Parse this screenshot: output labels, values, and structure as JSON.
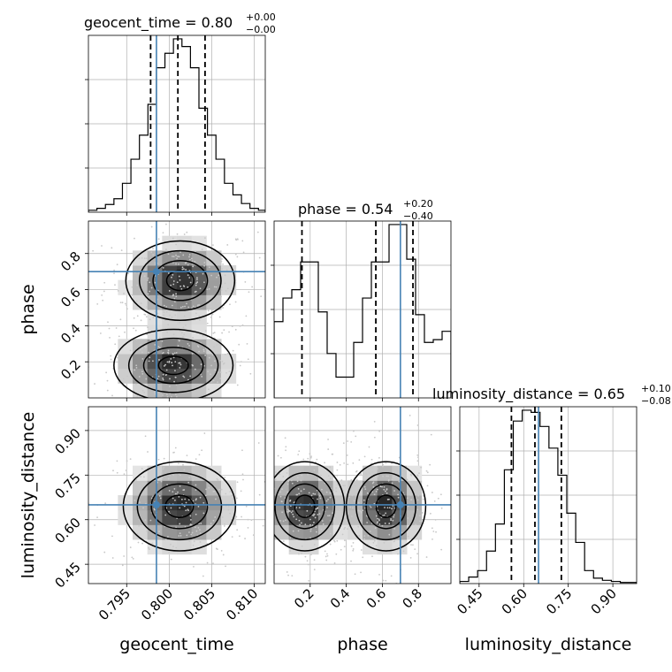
{
  "chart_data": {
    "type": "corner",
    "parameters": [
      "geocent_time",
      "phase",
      "luminosity_distance"
    ],
    "truths": {
      "geocent_time": 0.7985,
      "phase": 0.7,
      "luminosity_distance": 0.65
    },
    "titles": {
      "geocent_time": {
        "name": "geocent_time",
        "median": "0.80",
        "plus": "+0.00",
        "minus": "−0.00"
      },
      "phase": {
        "name": "phase",
        "median": "0.54",
        "plus": "+0.20",
        "minus": "−0.40"
      },
      "luminosity_distance": {
        "name": "luminosity_distance",
        "median": "0.65",
        "plus": "+0.10",
        "minus": "−0.08"
      }
    },
    "axes": {
      "geocent_time": {
        "range": [
          0.7905,
          0.8113
        ],
        "ticks": [
          0.795,
          0.8,
          0.805,
          0.81
        ],
        "tick_labels": [
          "0.795",
          "0.800",
          "0.805",
          "0.810"
        ],
        "label": "geocent_time"
      },
      "phase": {
        "range": [
          0.0,
          0.98
        ],
        "ticks": [
          0.2,
          0.4,
          0.6,
          0.8
        ],
        "tick_labels": [
          "0.2",
          "0.4",
          "0.6",
          "0.8"
        ],
        "label": "phase"
      },
      "luminosity_distance": {
        "range": [
          0.385,
          0.98
        ],
        "ticks": [
          0.45,
          0.6,
          0.75,
          0.9
        ],
        "tick_labels": [
          "0.45",
          "0.60",
          "0.75",
          "0.90"
        ],
        "label": "luminosity_distance"
      }
    },
    "histograms": {
      "geocent_time": {
        "edges": [
          0.7905,
          0.7915,
          0.7925,
          0.7935,
          0.7945,
          0.7955,
          0.7965,
          0.7975,
          0.7985,
          0.7995,
          0.8005,
          0.8015,
          0.8025,
          0.8035,
          0.8045,
          0.8055,
          0.8065,
          0.8075,
          0.8085,
          0.8095,
          0.8105,
          0.8113
        ],
        "values": [
          2,
          4,
          8,
          14,
          30,
          55,
          80,
          112,
          150,
          165,
          180,
          172,
          150,
          108,
          80,
          55,
          30,
          18,
          9,
          4,
          2
        ]
      },
      "phase": {
        "edges": [
          0.0,
          0.049,
          0.098,
          0.147,
          0.196,
          0.245,
          0.294,
          0.343,
          0.392,
          0.441,
          0.49,
          0.539,
          0.588,
          0.637,
          0.686,
          0.735,
          0.784,
          0.833,
          0.882,
          0.931,
          0.98
        ],
        "values": [
          55,
          72,
          78,
          98,
          98,
          62,
          32,
          15,
          15,
          40,
          72,
          98,
          98,
          125,
          125,
          100,
          60,
          40,
          42,
          48
        ]
      },
      "luminosity_distance": {
        "edges": [
          0.385,
          0.415,
          0.445,
          0.475,
          0.505,
          0.535,
          0.565,
          0.595,
          0.625,
          0.655,
          0.685,
          0.715,
          0.745,
          0.775,
          0.805,
          0.835,
          0.865,
          0.895,
          0.925,
          0.955,
          0.98
        ],
        "values": [
          2,
          6,
          12,
          30,
          55,
          105,
          150,
          160,
          158,
          145,
          125,
          100,
          65,
          38,
          12,
          5,
          3,
          2,
          1,
          1
        ]
      }
    },
    "correlation_panels": [
      {
        "x": "geocent_time",
        "y": "phase",
        "modes": [
          {
            "cx": 0.8013,
            "cy": 0.65,
            "sx": 0.0032,
            "sy": 0.11
          },
          {
            "cx": 0.8005,
            "cy": 0.18,
            "sx": 0.0035,
            "sy": 0.1
          }
        ]
      },
      {
        "x": "geocent_time",
        "y": "luminosity_distance",
        "modes": [
          {
            "cx": 0.8012,
            "cy": 0.645,
            "sx": 0.0033,
            "sy": 0.075
          }
        ]
      },
      {
        "x": "phase",
        "y": "luminosity_distance",
        "modes": [
          {
            "cx": 0.17,
            "cy": 0.645,
            "sx": 0.11,
            "sy": 0.075
          },
          {
            "cx": 0.62,
            "cy": 0.645,
            "sx": 0.11,
            "sy": 0.075
          }
        ]
      }
    ]
  }
}
